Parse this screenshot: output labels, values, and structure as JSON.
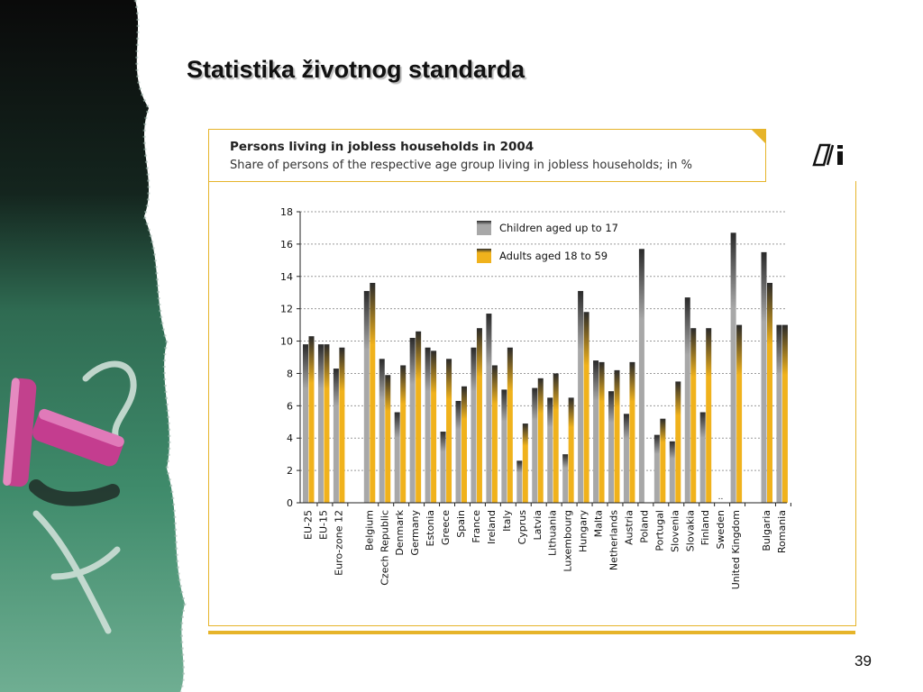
{
  "slide": {
    "title": "Statistika životnog standarda",
    "page_number": "39"
  },
  "chart_data": {
    "type": "bar",
    "title": "Persons living in jobless households in 2004",
    "subtitle": "Share of persons of the respective age group living in jobless households; in %",
    "xlabel": "",
    "ylabel": "",
    "ylim": [
      0,
      18
    ],
    "yticks": [
      0,
      2,
      4,
      6,
      8,
      10,
      12,
      14,
      16,
      18
    ],
    "grid": true,
    "legend_position": "top-center",
    "categories": [
      "EU-25",
      "EU-15",
      "Euro-zone 12",
      "",
      "Belgium",
      "Czech Republic",
      "Denmark",
      "Germany",
      "Estonia",
      "Greece",
      "Spain",
      "France",
      "Ireland",
      "Italy",
      "Cyprus",
      "Latvia",
      "Lithuania",
      "Luxembourg",
      "Hungary",
      "Malta",
      "Netherlands",
      "Austria",
      "Poland",
      "Portugal",
      "Slovenia",
      "Slovakia",
      "Finland",
      "Sweden",
      "United Kingdom",
      "",
      "Bulgaria",
      "Romania"
    ],
    "series": [
      {
        "name": "Children aged up to 17",
        "color": "#a8a8a8",
        "values": [
          9.8,
          9.8,
          8.3,
          null,
          13.1,
          8.9,
          5.6,
          10.2,
          9.6,
          4.4,
          6.3,
          9.6,
          11.7,
          7.0,
          2.6,
          7.1,
          6.5,
          3.0,
          13.1,
          8.8,
          6.9,
          5.5,
          15.7,
          4.2,
          3.8,
          12.7,
          5.6,
          null,
          16.7,
          null,
          15.5,
          11.0
        ],
        "missing_label": ".."
      },
      {
        "name": "Adults aged 18 to 59",
        "color": "#f0b21c",
        "values": [
          10.3,
          9.8,
          9.6,
          null,
          13.6,
          7.9,
          8.5,
          10.6,
          9.4,
          8.9,
          7.2,
          10.8,
          8.5,
          9.6,
          4.9,
          7.7,
          8.0,
          6.5,
          11.8,
          8.7,
          8.2,
          8.7,
          null,
          5.2,
          7.5,
          10.8,
          10.8,
          null,
          11.0,
          null,
          13.6,
          11.0
        ]
      }
    ]
  },
  "colors": {
    "accent": "#e6b42a",
    "children_bar": "#a8a8a8",
    "adults_bar": "#f0b21c",
    "bar_top_dark": "#2a2a2a"
  }
}
